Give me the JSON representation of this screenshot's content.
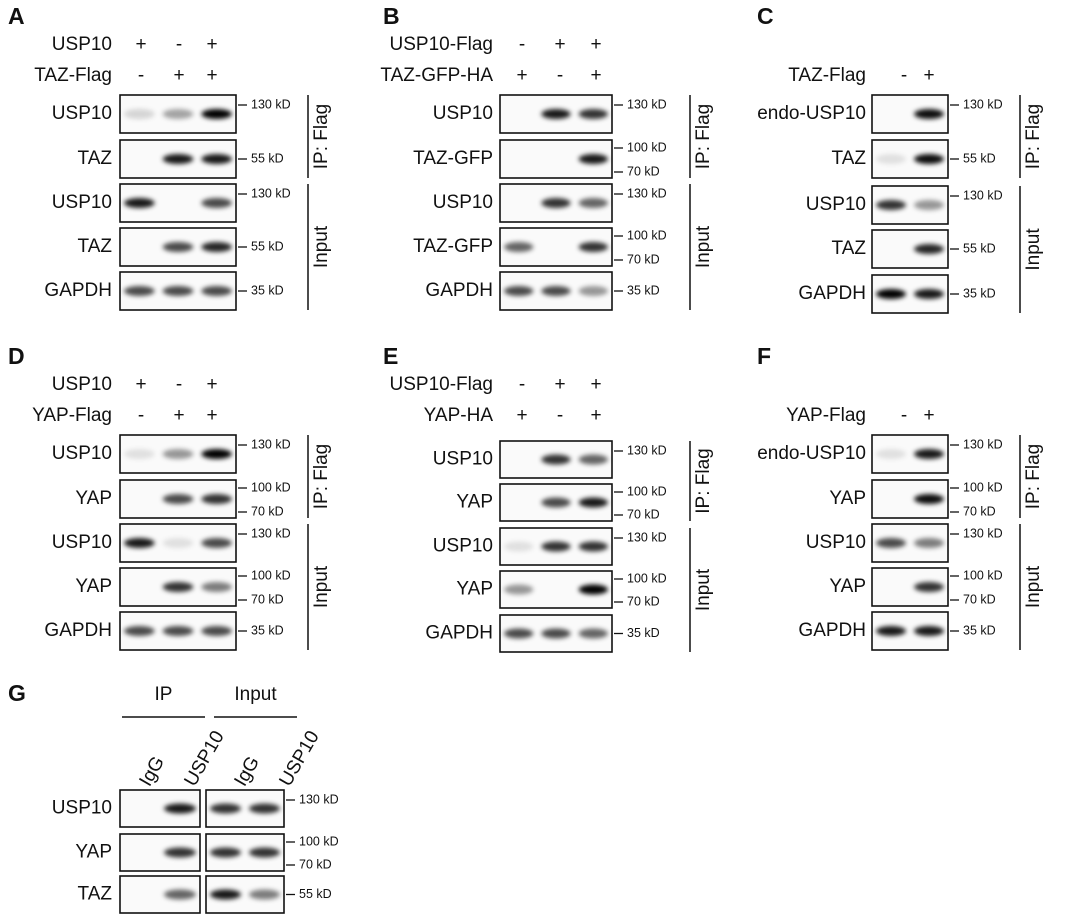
{
  "panels": [
    {
      "letter": "A",
      "treatments": [
        {
          "label": "USP10",
          "signs": [
            "+",
            "-",
            "+"
          ]
        },
        {
          "label": "TAZ-Flag",
          "signs": [
            "-",
            "+",
            "+"
          ]
        }
      ],
      "blots": [
        {
          "label": "USP10",
          "markers": [
            "130 kD"
          ]
        },
        {
          "label": "TAZ",
          "markers": [
            "55 kD"
          ]
        },
        {
          "label": "USP10",
          "markers": [
            "130 kD"
          ]
        },
        {
          "label": "TAZ",
          "markers": [
            "55 kD"
          ]
        },
        {
          "label": "GAPDH",
          "markers": [
            "35 kD"
          ]
        }
      ],
      "groups": [
        {
          "label": "IP: Flag"
        },
        {
          "label": "Input"
        }
      ]
    },
    {
      "letter": "B",
      "treatments": [
        {
          "label": "USP10-Flag",
          "signs": [
            "-",
            "+",
            "+"
          ]
        },
        {
          "label": "TAZ-GFP-HA",
          "signs": [
            "+",
            "-",
            "+"
          ]
        }
      ],
      "blots": [
        {
          "label": "USP10",
          "markers": [
            "130 kD"
          ]
        },
        {
          "label": "TAZ-GFP",
          "markers": [
            "100 kD",
            "70 kD"
          ]
        },
        {
          "label": "USP10",
          "markers": [
            "130 kD"
          ]
        },
        {
          "label": "TAZ-GFP",
          "markers": [
            "100 kD",
            "70 kD"
          ]
        },
        {
          "label": "GAPDH",
          "markers": [
            "35 kD"
          ]
        }
      ],
      "groups": [
        {
          "label": "IP: Flag"
        },
        {
          "label": "Input"
        }
      ]
    },
    {
      "letter": "C",
      "treatments": [
        {
          "label": "TAZ-Flag",
          "signs": [
            "-",
            "+"
          ]
        }
      ],
      "blots": [
        {
          "label": "endo-USP10",
          "markers": [
            "130 kD"
          ]
        },
        {
          "label": "TAZ",
          "markers": [
            "55 kD"
          ]
        },
        {
          "label": "USP10",
          "markers": [
            "130 kD"
          ]
        },
        {
          "label": "TAZ",
          "markers": [
            "55 kD"
          ]
        },
        {
          "label": "GAPDH",
          "markers": [
            "35 kD"
          ]
        }
      ],
      "groups": [
        {
          "label": "IP: Flag"
        },
        {
          "label": "Input"
        }
      ]
    },
    {
      "letter": "D",
      "treatments": [
        {
          "label": "USP10",
          "signs": [
            "+",
            "-",
            "+"
          ]
        },
        {
          "label": "YAP-Flag",
          "signs": [
            "-",
            "+",
            "+"
          ]
        }
      ],
      "blots": [
        {
          "label": "USP10",
          "markers": [
            "130 kD"
          ]
        },
        {
          "label": "YAP",
          "markers": [
            "100 kD",
            "70 kD"
          ]
        },
        {
          "label": "USP10",
          "markers": [
            "130 kD"
          ]
        },
        {
          "label": "YAP",
          "markers": [
            "100 kD",
            "70 kD"
          ]
        },
        {
          "label": "GAPDH",
          "markers": [
            "35 kD"
          ]
        }
      ],
      "groups": [
        {
          "label": "IP: Flag"
        },
        {
          "label": "Input"
        }
      ]
    },
    {
      "letter": "E",
      "treatments": [
        {
          "label": "USP10-Flag",
          "signs": [
            "-",
            "+",
            "+"
          ]
        },
        {
          "label": "YAP-HA",
          "signs": [
            "+",
            "-",
            "+"
          ]
        }
      ],
      "blots": [
        {
          "label": "USP10",
          "markers": [
            "130 kD"
          ]
        },
        {
          "label": "YAP",
          "markers": [
            "100 kD",
            "70 kD"
          ]
        },
        {
          "label": "USP10",
          "markers": [
            "130 kD"
          ]
        },
        {
          "label": "YAP",
          "markers": [
            "100 kD",
            "70 kD"
          ]
        },
        {
          "label": "GAPDH",
          "markers": [
            "35 kD"
          ]
        }
      ],
      "groups": [
        {
          "label": "IP: Flag"
        },
        {
          "label": "Input"
        }
      ]
    },
    {
      "letter": "F",
      "treatments": [
        {
          "label": "YAP-Flag",
          "signs": [
            "-",
            "+"
          ]
        }
      ],
      "blots": [
        {
          "label": "endo-USP10",
          "markers": [
            "130 kD"
          ]
        },
        {
          "label": "YAP",
          "markers": [
            "100 kD",
            "70 kD"
          ]
        },
        {
          "label": "USP10",
          "markers": [
            "130 kD"
          ]
        },
        {
          "label": "YAP",
          "markers": [
            "100 kD",
            "70 kD"
          ]
        },
        {
          "label": "GAPDH",
          "markers": [
            "35 kD"
          ]
        }
      ],
      "groups": [
        {
          "label": "IP: Flag"
        },
        {
          "label": "Input"
        }
      ]
    },
    {
      "letter": "G",
      "groups": [
        {
          "label": "IP",
          "lanes": [
            "IgG",
            "USP10"
          ]
        },
        {
          "label": "Input",
          "lanes": [
            "IgG",
            "USP10"
          ]
        }
      ],
      "blots": [
        {
          "label": "USP10",
          "markers": [
            "130 kD"
          ]
        },
        {
          "label": "YAP",
          "markers": [
            "100 kD",
            "70 kD"
          ]
        },
        {
          "label": "TAZ",
          "markers": [
            "55 kD"
          ]
        }
      ]
    }
  ]
}
